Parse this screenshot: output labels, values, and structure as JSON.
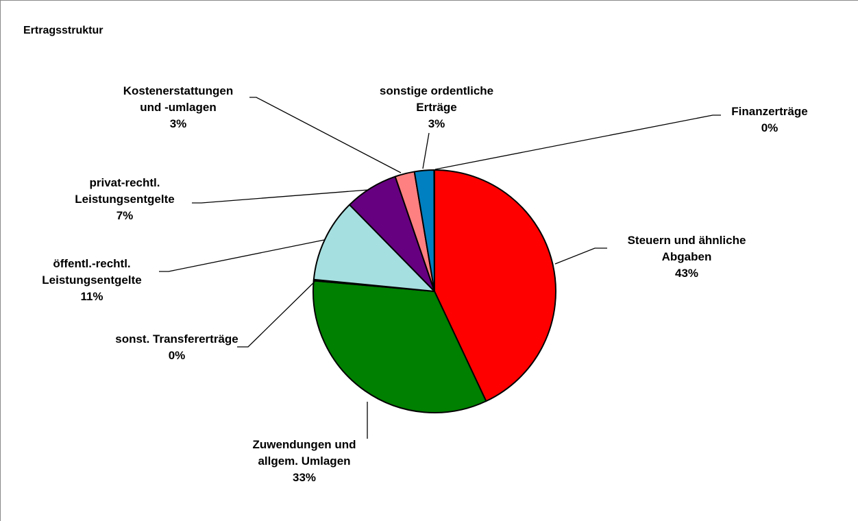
{
  "chart_data": {
    "type": "pie",
    "title": "Ertragsstruktur",
    "start_angle_deg": 0,
    "direction": "clockwise",
    "slices": [
      {
        "label_lines": [
          "Steuern und ähnliche",
          "Abgaben"
        ],
        "percent_label": "43%",
        "value": 43.0,
        "color": "#ff0000"
      },
      {
        "label_lines": [
          "Zuwendungen und",
          "allgem. Umlagen"
        ],
        "percent_label": "33%",
        "value": 33.4,
        "color": "#008000"
      },
      {
        "label_lines": [
          "sonst. Transfererträge"
        ],
        "percent_label": "0%",
        "value": 0.15,
        "color": "#ccffff"
      },
      {
        "label_lines": [
          "öffentl.-rechtl.",
          "Leistungsentgelte"
        ],
        "percent_label": "11%",
        "value": 11.1,
        "color": "#a6dfdf"
      },
      {
        "label_lines": [
          "privat-rechtl.",
          "Leistungsentgelte"
        ],
        "percent_label": "7%",
        "value": 7.1,
        "color": "#660080"
      },
      {
        "label_lines": [
          "Kostenerstattungen",
          "und -umlagen"
        ],
        "percent_label": "3%",
        "value": 2.6,
        "color": "#ff8080"
      },
      {
        "label_lines": [
          "sonstige ordentliche",
          "Erträge"
        ],
        "percent_label": "3%",
        "value": 2.6,
        "color": "#0080c0"
      },
      {
        "label_lines": [
          "Finanzerträge"
        ],
        "percent_label": "0%",
        "value": 0.05,
        "color": "#ffff99"
      }
    ]
  }
}
